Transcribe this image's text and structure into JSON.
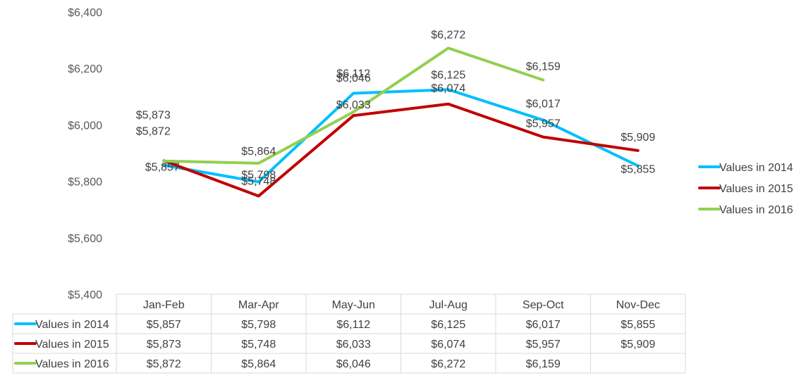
{
  "chart_data": {
    "type": "line",
    "title": "",
    "xlabel": "",
    "ylabel": "",
    "ylim": [
      5400,
      6400
    ],
    "yticks": [
      "$5,400",
      "$5,600",
      "$5,800",
      "$6,000",
      "$6,200",
      "$6,400"
    ],
    "ytick_values": [
      5400,
      5600,
      5800,
      6000,
      6200,
      6400
    ],
    "categories": [
      "Jan-Feb",
      "Mar-Apr",
      "May-Jun",
      "Jul-Aug",
      "Sep-Oct",
      "Nov-Dec"
    ],
    "grid": false,
    "legend_position": "right",
    "data_table": true,
    "series": [
      {
        "name": "Values in 2014",
        "color": "#00bfff",
        "values": [
          5857,
          5798,
          6112,
          6125,
          6017,
          5855
        ],
        "labels": [
          "$5,857",
          "$5,798",
          "$6,112",
          "$6,125",
          "$6,017",
          "$5,855"
        ]
      },
      {
        "name": "Values in 2015",
        "color": "#c00000",
        "values": [
          5873,
          5748,
          6033,
          6074,
          5957,
          5909
        ],
        "labels": [
          "$5,873",
          "$5,748",
          "$6,033",
          "$6,074",
          "$5,957",
          "$5,909"
        ]
      },
      {
        "name": "Values in 2016",
        "color": "#92d050",
        "values": [
          5872,
          5864,
          6046,
          6272,
          6159,
          null
        ],
        "labels": [
          "$5,872",
          "$5,864",
          "$6,046",
          "$6,272",
          "$6,159",
          ""
        ]
      }
    ]
  }
}
